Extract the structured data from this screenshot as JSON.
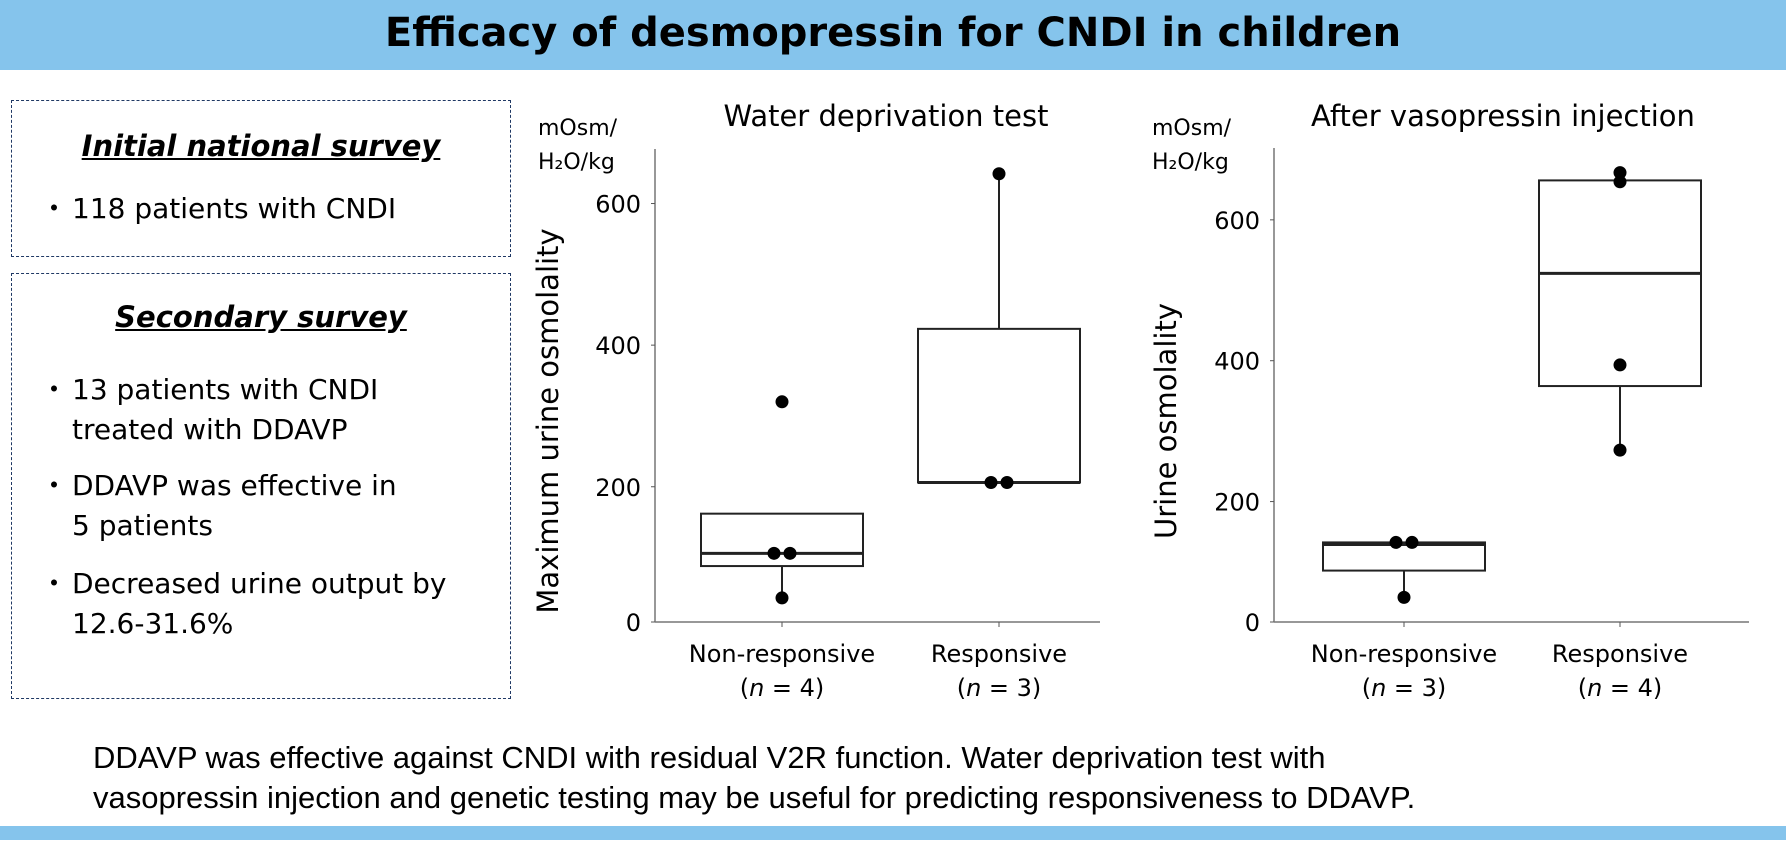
{
  "header": {
    "title": "Efficacy of desmopressin for CNDI in children"
  },
  "initial_survey": {
    "heading": "Initial national survey",
    "bullets": [
      "118 patients with CNDI"
    ]
  },
  "secondary_survey": {
    "heading": "Secondary survey",
    "bullets": [
      {
        "line1": "13 patients with CNDI",
        "line2": "treated with DDAVP"
      },
      {
        "line1": "DDAVP was effective in",
        "line2": "5 patients"
      },
      {
        "line1": "Decreased urine output by",
        "line2": "12.6-31.6%"
      }
    ],
    "bullet_char": "・"
  },
  "footer": {
    "line1": "DDAVP was effective against CNDI with residual V2R function. Water deprivation test with",
    "line2": "vasopressin injection and genetic testing may be useful for predicting responsiveness to DDAVP."
  },
  "colors": {
    "band": "#85C4EC",
    "box_border": "#1F3864"
  },
  "chart_data": [
    {
      "type": "box",
      "title": "Water deprivation test",
      "unit_line1": "mOsm/",
      "unit_line2": "H₂O/kg",
      "ylabel": "Maximum urine osmolality",
      "ylim": [
        9,
        677
      ],
      "yticks": [
        0,
        200,
        400,
        600
      ],
      "ytick_labels": [
        "0",
        "200",
        "400",
        "600"
      ],
      "categories": [
        {
          "name": "Non-responsive",
          "n_label_pre": "(",
          "n_italic": "n",
          "n_label_post": " = 4)",
          "box": {
            "q1": 88,
            "median": 106,
            "q3": 162,
            "whisker_low": 43,
            "whisker_high": 162
          },
          "points": [
            320,
            106,
            106,
            43
          ]
        },
        {
          "name": "Responsive",
          "n_label_pre": "(",
          "n_italic": "n",
          "n_label_post": " = 3)",
          "box": {
            "q1": 206,
            "median": 206,
            "q3": 423,
            "whisker_low": 206,
            "whisker_high": 642
          },
          "points": [
            642,
            206,
            206
          ]
        }
      ]
    },
    {
      "type": "box",
      "title": "After vasopressin injection",
      "unit_line1": "mOsm/",
      "unit_line2": "H₂O/kg",
      "ylabel": "Urine osmolality",
      "ylim": [
        29,
        702
      ],
      "yticks": [
        0,
        200,
        400,
        600
      ],
      "ytick_labels": [
        "0",
        "200",
        "400",
        "600"
      ],
      "categories": [
        {
          "name": "Non-responsive",
          "n_label_pre": "(",
          "n_italic": "n",
          "n_label_post": " = 3)",
          "box": {
            "q1": 102,
            "median": 139,
            "q3": 142,
            "whisker_low": 64,
            "whisker_high": 142
          },
          "points": [
            142,
            142,
            64
          ]
        },
        {
          "name": "Responsive",
          "n_label_pre": "(",
          "n_italic": "n",
          "n_label_post": " = 4)",
          "box": {
            "q1": 364,
            "median": 524,
            "q3": 656,
            "whisker_low": 273,
            "whisker_high": 656
          },
          "points": [
            667,
            654,
            394,
            273
          ]
        }
      ]
    }
  ]
}
